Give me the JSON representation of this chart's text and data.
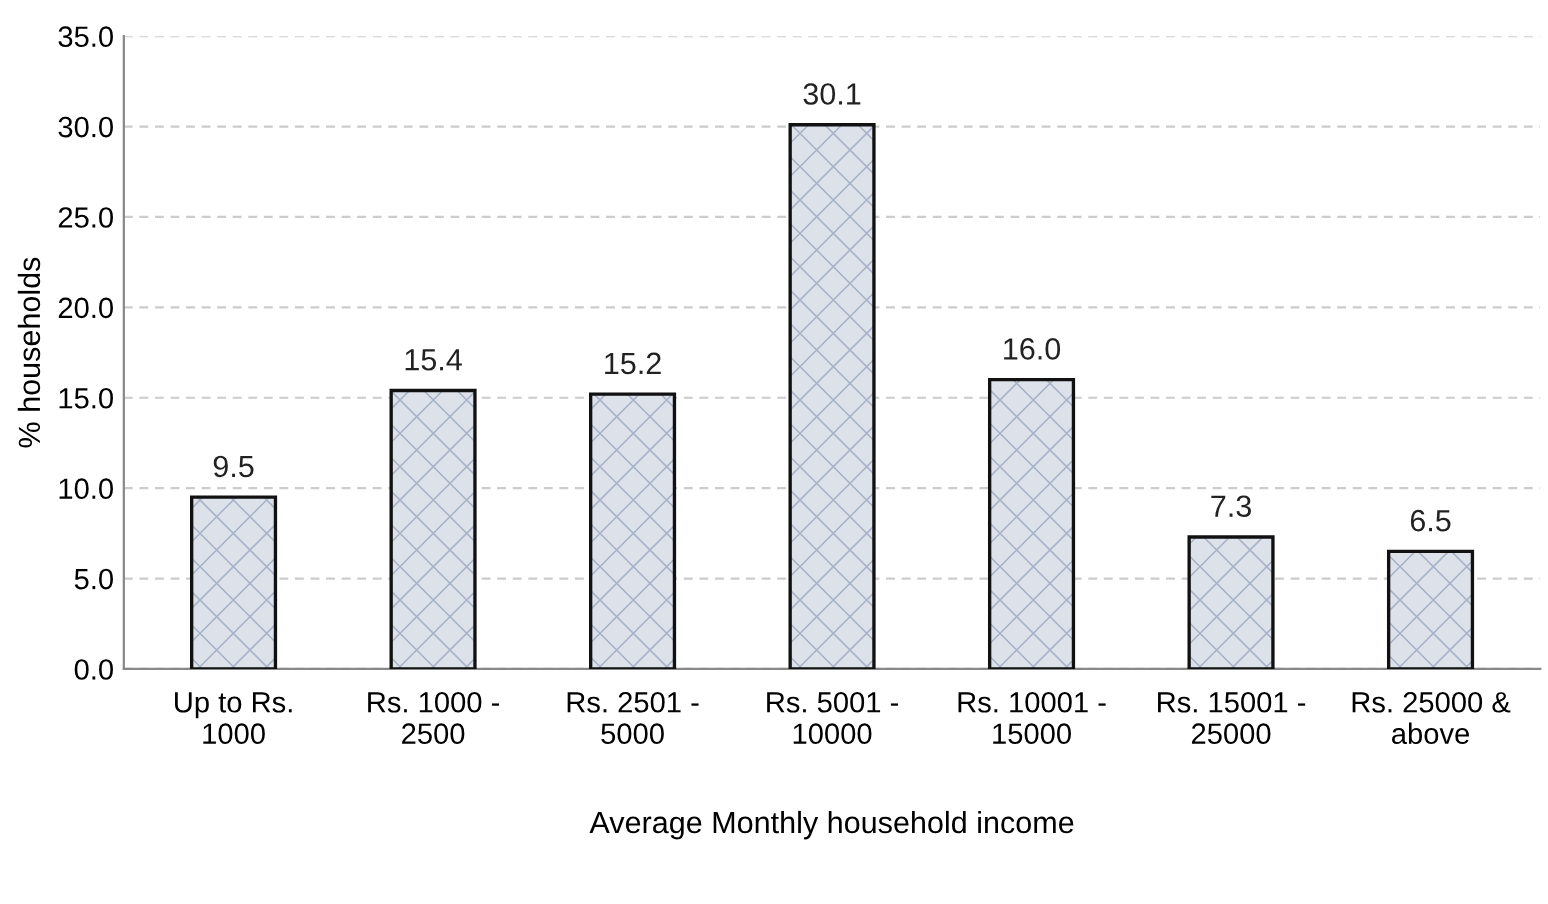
{
  "chart_data": {
    "type": "bar",
    "xlabel": "Average Monthly household income",
    "ylabel": "% households",
    "categories": [
      "Up to Rs.\n1000",
      "Rs. 1000 -\n2500",
      "Rs. 2501 -\n5000",
      "Rs. 5001 -\n10000",
      "Rs. 10001 -\n15000",
      "Rs. 15001 -\n25000",
      "Rs. 25000 &\nabove"
    ],
    "values": [
      9.5,
      15.4,
      15.2,
      30.1,
      16.0,
      7.3,
      6.5
    ],
    "value_labels": [
      "9.5",
      "15.4",
      "15.2",
      "30.1",
      "16.0",
      "7.3",
      "6.5"
    ],
    "color": "#dde2ea",
    "ylim": [
      0,
      35
    ],
    "yticks": [
      {
        "value": 0,
        "label": "0.0"
      },
      {
        "value": 5,
        "label": "5.0"
      },
      {
        "value": 10,
        "label": "10.0"
      },
      {
        "value": 15,
        "label": "15.0"
      },
      {
        "value": 20,
        "label": "20.0"
      },
      {
        "value": 25,
        "label": "25.0"
      },
      {
        "value": 30,
        "label": "30.0"
      },
      {
        "value": 35,
        "label": "35.0"
      }
    ],
    "grid": "y",
    "legend": false
  }
}
